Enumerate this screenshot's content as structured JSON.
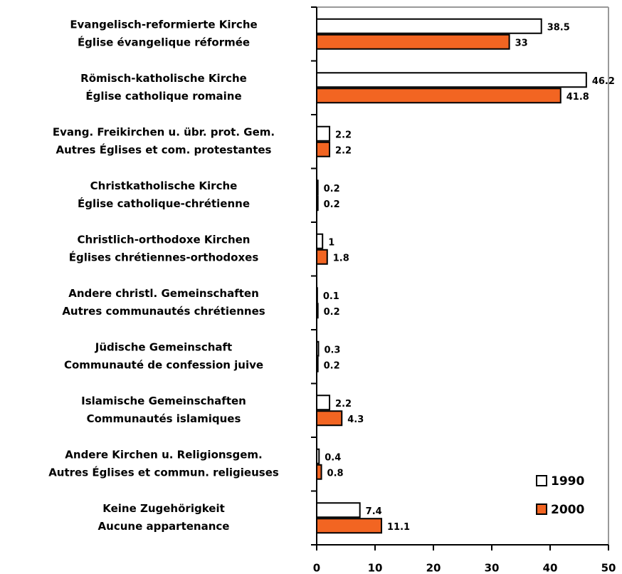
{
  "chart_data": {
    "type": "barh",
    "categories": [
      [
        "Evangelisch-reformierte Kirche",
        "Église évangelique réformée"
      ],
      [
        "Römisch-katholische Kirche",
        "Église catholique romaine"
      ],
      [
        "Evang. Freikirchen u. übr. prot. Gem.",
        "Autres Églises et com. protestantes"
      ],
      [
        "Christkatholische Kirche",
        "Église catholique-chrétienne"
      ],
      [
        "Christlich-orthodoxe Kirchen",
        "Églises chrétiennes-orthodoxes"
      ],
      [
        "Andere christl. Gemeinschaften",
        "Autres communautés chrétiennes"
      ],
      [
        "Jüdische Gemeinschaft",
        "Communauté de confession juive"
      ],
      [
        "Islamische Gemeinschaften",
        "Communautés islamiques"
      ],
      [
        "Andere Kirchen u. Religionsgem.",
        "Autres Églises et commun. religieuses"
      ],
      [
        "Keine Zugehörigkeit",
        "Aucune appartenance"
      ]
    ],
    "series": [
      {
        "name": "1990",
        "color": "#ffffff",
        "values": [
          38.5,
          46.2,
          2.2,
          0.2,
          1,
          0.1,
          0.3,
          2.2,
          0.4,
          7.4
        ]
      },
      {
        "name": "2000",
        "color": "#f26522",
        "values": [
          33,
          41.8,
          2.2,
          0.2,
          1.8,
          0.2,
          0.2,
          4.3,
          0.8,
          11.1
        ]
      }
    ],
    "xlim": [
      0,
      50
    ],
    "xticks": [
      0,
      10,
      20,
      30,
      40,
      50
    ],
    "legend": "bottom-right"
  }
}
